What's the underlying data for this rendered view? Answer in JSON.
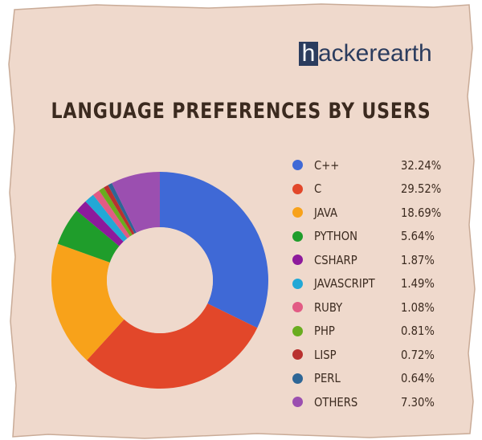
{
  "brand": {
    "box_letter": "h",
    "name": "ackerearth"
  },
  "chart_data": {
    "type": "pie",
    "title": "LANGUAGE PREFERENCES BY USERS",
    "categories": [
      "C++",
      "C",
      "JAVA",
      "PYTHON",
      "CSHARP",
      "JAVASCRIPT",
      "RUBY",
      "PHP",
      "LISP",
      "PERL",
      "OTHERS"
    ],
    "values": [
      32.24,
      29.52,
      18.69,
      5.64,
      1.87,
      1.49,
      1.08,
      0.81,
      0.72,
      0.64,
      7.3
    ],
    "labels": [
      "32.24%",
      "29.52%",
      "18.69%",
      "5.64%",
      "1.87%",
      "1.49%",
      "1.08%",
      "0.81%",
      "0.72%",
      "0.64%",
      "7.30%"
    ],
    "colors": [
      "#3f69d6",
      "#e2472a",
      "#f8a21a",
      "#1f9d2b",
      "#8d1a9c",
      "#22a8d6",
      "#e25b84",
      "#69ac1f",
      "#b9312f",
      "#2e6696",
      "#9b4fb0"
    ],
    "donut": true,
    "legend_position": "right"
  }
}
